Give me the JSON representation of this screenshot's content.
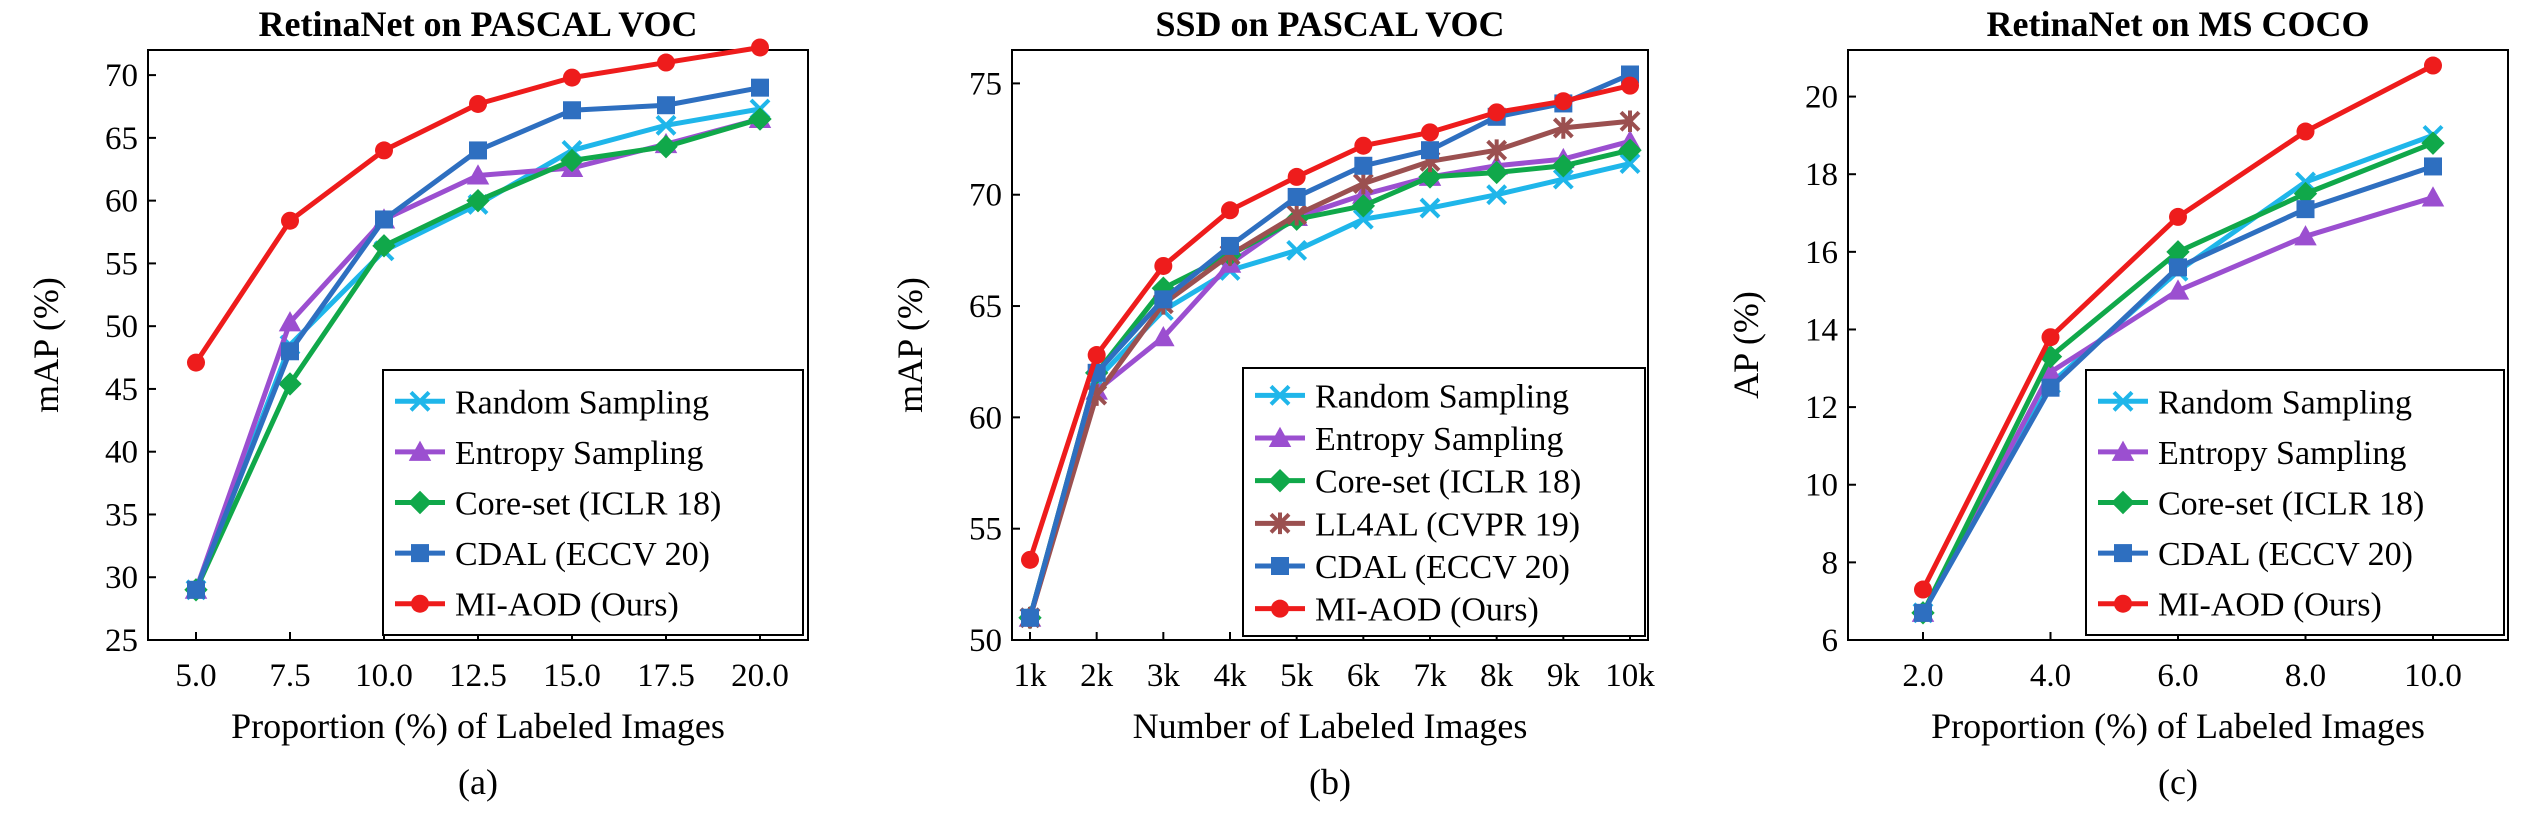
{
  "colors": {
    "random": "#1fb6ea",
    "entropy": "#9b4fd0",
    "coreset": "#10a84a",
    "ll4al": "#9b5050",
    "cdal": "#2e6fc0",
    "miaod": "#ee1c1c"
  },
  "chart_data": [
    {
      "type": "line",
      "title": "RetinaNet on PASCAL VOC",
      "xlabel": "Proportion (%) of Labeled Images",
      "ylabel": "mAP (%)",
      "caption": "(a)",
      "categories": [
        "5.0",
        "7.5",
        "10.0",
        "12.5",
        "15.0",
        "17.5",
        "20.0"
      ],
      "ylim": [
        25,
        72
      ],
      "yticks": [
        25,
        30,
        35,
        40,
        45,
        50,
        55,
        60,
        65,
        70
      ],
      "legend": "bottom-right",
      "series": [
        {
          "name": "Random Sampling",
          "color_key": "random",
          "marker": "x",
          "values": [
            29.0,
            48.5,
            56.0,
            59.7,
            64.0,
            66.0,
            67.3
          ]
        },
        {
          "name": "Entropy Sampling",
          "color_key": "entropy",
          "marker": "triangle",
          "values": [
            29.0,
            50.3,
            58.5,
            62.0,
            62.6,
            64.5,
            66.5
          ]
        },
        {
          "name": "Core-set (ICLR 18)",
          "color_key": "coreset",
          "marker": "diamond",
          "values": [
            29.0,
            45.4,
            56.4,
            60.0,
            63.2,
            64.3,
            66.5
          ]
        },
        {
          "name": "CDAL (ECCV 20)",
          "color_key": "cdal",
          "marker": "square",
          "values": [
            29.0,
            48.0,
            58.5,
            64.0,
            67.2,
            67.6,
            69.0
          ]
        },
        {
          "name": "MI-AOD (Ours)",
          "color_key": "miaod",
          "marker": "circle",
          "values": [
            47.1,
            58.4,
            64.0,
            67.7,
            69.8,
            71.0,
            72.2
          ]
        }
      ]
    },
    {
      "type": "line",
      "title": "SSD on PASCAL VOC",
      "xlabel": "Number of Labeled Images",
      "ylabel": "mAP (%)",
      "caption": "(b)",
      "categories": [
        "1k",
        "2k",
        "3k",
        "4k",
        "5k",
        "6k",
        "7k",
        "8k",
        "9k",
        "10k"
      ],
      "ylim": [
        50,
        76.5
      ],
      "yticks": [
        50,
        55,
        60,
        65,
        70,
        75
      ],
      "legend": "bottom-right",
      "series": [
        {
          "name": "Random Sampling",
          "color_key": "random",
          "marker": "x",
          "values": [
            51.0,
            61.7,
            64.8,
            66.6,
            67.5,
            68.9,
            69.4,
            70.0,
            70.7,
            71.4
          ]
        },
        {
          "name": "Entropy Sampling",
          "color_key": "entropy",
          "marker": "triangle",
          "values": [
            51.0,
            61.2,
            63.6,
            66.9,
            69.0,
            70.0,
            70.8,
            71.3,
            71.6,
            72.4
          ]
        },
        {
          "name": "Core-set (ICLR 18)",
          "color_key": "coreset",
          "marker": "diamond",
          "values": [
            51.0,
            62.0,
            65.8,
            67.3,
            68.9,
            69.5,
            70.8,
            71.0,
            71.3,
            72.0
          ]
        },
        {
          "name": "LL4AL (CVPR 19)",
          "color_key": "ll4al",
          "marker": "star",
          "values": [
            51.0,
            61.0,
            65.1,
            67.3,
            69.1,
            70.5,
            71.5,
            72.0,
            73.0,
            73.3
          ]
        },
        {
          "name": "CDAL (ECCV 20)",
          "color_key": "cdal",
          "marker": "square",
          "values": [
            51.0,
            62.0,
            65.3,
            67.7,
            69.9,
            71.3,
            72.0,
            73.5,
            74.1,
            75.4
          ]
        },
        {
          "name": "MI-AOD (Ours)",
          "color_key": "miaod",
          "marker": "circle",
          "values": [
            53.6,
            62.8,
            66.8,
            69.3,
            70.8,
            72.2,
            72.8,
            73.7,
            74.2,
            74.9
          ]
        }
      ]
    },
    {
      "type": "line",
      "title": "RetinaNet on MS COCO",
      "xlabel": "Proportion (%) of Labeled Images",
      "ylabel": "AP (%)",
      "caption": "(c)",
      "categories": [
        "2.0",
        "4.0",
        "6.0",
        "8.0",
        "10.0"
      ],
      "ylim": [
        6,
        21.2
      ],
      "yticks": [
        6,
        8,
        10,
        12,
        14,
        16,
        18,
        20
      ],
      "legend": "bottom-right",
      "series": [
        {
          "name": "Random Sampling",
          "color_key": "random",
          "marker": "x",
          "values": [
            6.7,
            12.6,
            15.5,
            17.8,
            19.0
          ]
        },
        {
          "name": "Entropy Sampling",
          "color_key": "entropy",
          "marker": "triangle",
          "values": [
            6.7,
            12.9,
            15.0,
            16.4,
            17.4
          ]
        },
        {
          "name": "Core-set (ICLR 18)",
          "color_key": "coreset",
          "marker": "diamond",
          "values": [
            6.7,
            13.3,
            16.0,
            17.5,
            18.8
          ]
        },
        {
          "name": "CDAL (ECCV 20)",
          "color_key": "cdal",
          "marker": "square",
          "values": [
            6.7,
            12.5,
            15.6,
            17.1,
            18.2
          ]
        },
        {
          "name": "MI-AOD (Ours)",
          "color_key": "miaod",
          "marker": "circle",
          "values": [
            7.3,
            13.8,
            16.9,
            19.1,
            20.8
          ]
        }
      ]
    }
  ]
}
